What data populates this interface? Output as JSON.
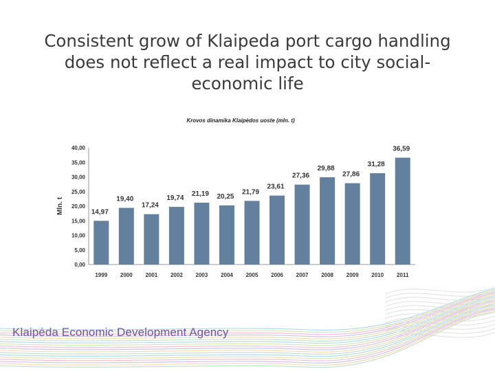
{
  "slide": {
    "title": "Consistent grow of Klaipeda port cargo handling does not reflect a real impact to city social-economic life"
  },
  "footer": {
    "agency_name": "Klaipėda Economic Development Agency"
  },
  "colors": {
    "bar": "#63809f",
    "agency_text": "#6f55a0",
    "decor_lines": [
      "#8fc9dd",
      "#c9d98a",
      "#e9a3c6",
      "#b9a7d6",
      "#f3c98f",
      "#a8d3b7"
    ]
  },
  "chart_data": {
    "type": "bar",
    "title": "Krovos dinamika Klaipėdos uoste (mln. t)",
    "ylabel": "Mln. t",
    "xlabel": "",
    "categories": [
      "1999",
      "2000",
      "2001",
      "2002",
      "2003",
      "2004",
      "2005",
      "2006",
      "2007",
      "2008",
      "2009",
      "2010",
      "2011"
    ],
    "values": [
      14.97,
      19.4,
      17.24,
      19.74,
      21.19,
      20.25,
      21.79,
      23.61,
      27.36,
      29.88,
      27.86,
      31.28,
      36.59
    ],
    "value_labels": [
      "14,97",
      "19,40",
      "17,24",
      "19,74",
      "21,19",
      "20,25",
      "21,79",
      "23,61",
      "27,36",
      "29,88",
      "27,86",
      "31,28",
      "36,59"
    ],
    "yticks": [
      "0,00",
      "5,00",
      "10,00",
      "15,00",
      "20,00",
      "25,00",
      "30,00",
      "35,00",
      "40,00"
    ],
    "ylim": [
      0,
      40
    ],
    "grid": false,
    "legend": "none"
  }
}
